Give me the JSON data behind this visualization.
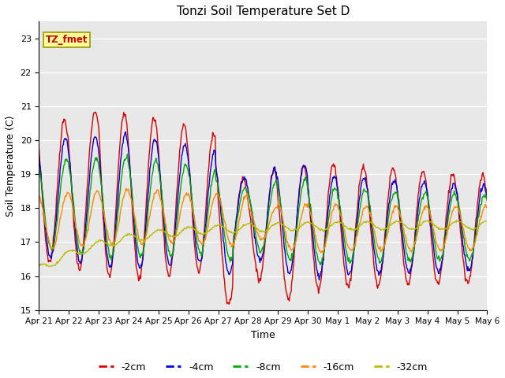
{
  "title": "Tonzi Soil Temperature Set D",
  "xlabel": "Time",
  "ylabel": "Soil Temperature (C)",
  "ylim": [
    15.0,
    23.5
  ],
  "yticks": [
    15.0,
    16.0,
    17.0,
    18.0,
    19.0,
    20.0,
    21.0,
    22.0,
    23.0
  ],
  "series_labels": [
    "-2cm",
    "-4cm",
    "-8cm",
    "-16cm",
    "-32cm"
  ],
  "series_colors": [
    "#dd0000",
    "#0000dd",
    "#00aa00",
    "#ff8800",
    "#bbbb00"
  ],
  "annotation_text": "TZ_fmet",
  "annotation_bg": "#ffff99",
  "annotation_border": "#999900",
  "background_color": "#e8e8e8",
  "xtick_labels": [
    "Apr 21",
    "Apr 22",
    "Apr 23",
    "Apr 24",
    "Apr 25",
    "Apr 26",
    "Apr 27",
    "Apr 28",
    "Apr 29",
    "Apr 30",
    "May 1",
    "May 2",
    "May 3",
    "May 4",
    "May 5",
    "May 6"
  ],
  "days": 15,
  "pts_per_day": 48
}
